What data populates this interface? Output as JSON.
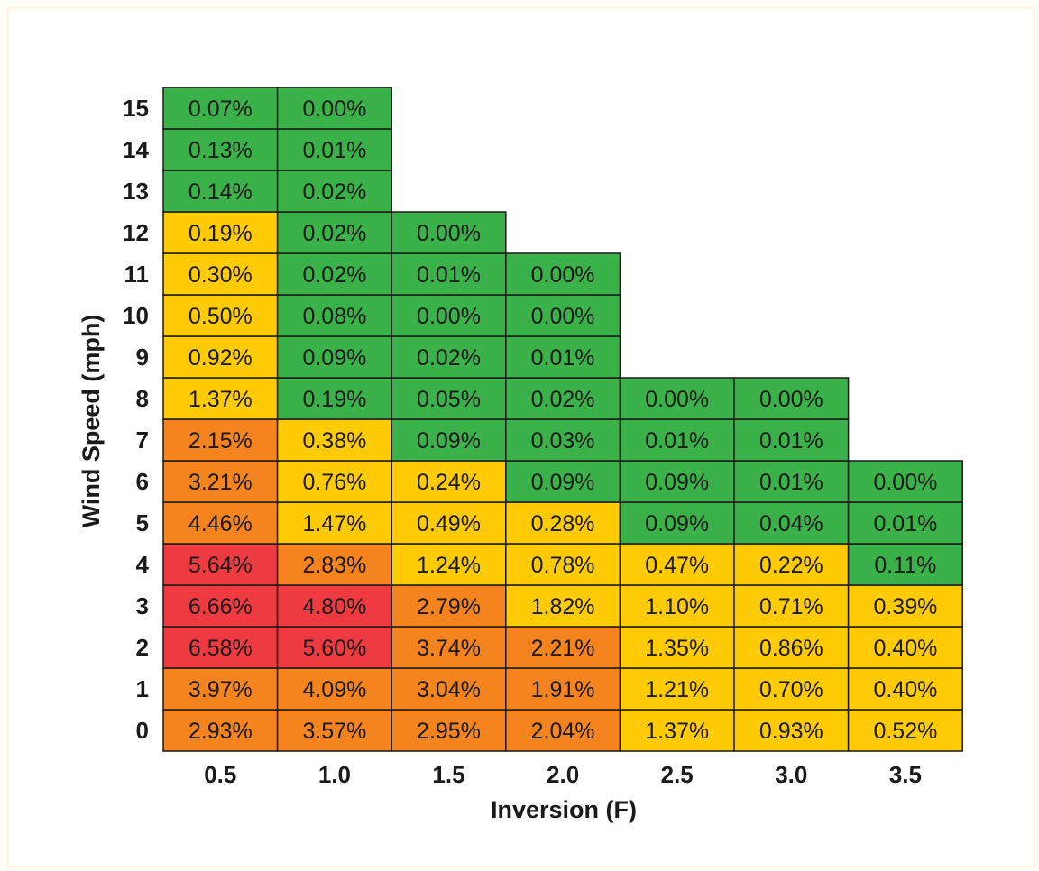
{
  "chart_data": {
    "type": "heatmap",
    "xlabel": "Inversion (F)",
    "ylabel": "Wind Speed (mph)",
    "x_categories": [
      "0.5",
      "1.0",
      "1.5",
      "2.0",
      "2.5",
      "3.0",
      "3.5"
    ],
    "y_categories": [
      "0",
      "1",
      "2",
      "3",
      "4",
      "5",
      "6",
      "7",
      "8",
      "9",
      "10",
      "11",
      "12",
      "13",
      "14",
      "15"
    ],
    "colors": {
      "green": "#3bb14a",
      "yellow": "#ffcb05",
      "orange": "#f5841f",
      "red": "#ef3a42",
      "border": "#1a1a1a"
    },
    "columns": [
      {
        "x": "0.5",
        "cells": [
          {
            "y": "0",
            "label": "2.93%",
            "color": "orange"
          },
          {
            "y": "1",
            "label": "3.97%",
            "color": "orange"
          },
          {
            "y": "2",
            "label": "6.58%",
            "color": "red"
          },
          {
            "y": "3",
            "label": "6.66%",
            "color": "red"
          },
          {
            "y": "4",
            "label": "5.64%",
            "color": "red"
          },
          {
            "y": "5",
            "label": "4.46%",
            "color": "orange"
          },
          {
            "y": "6",
            "label": "3.21%",
            "color": "orange"
          },
          {
            "y": "7",
            "label": "2.15%",
            "color": "orange"
          },
          {
            "y": "8",
            "label": "1.37%",
            "color": "yellow"
          },
          {
            "y": "9",
            "label": "0.92%",
            "color": "yellow"
          },
          {
            "y": "10",
            "label": "0.50%",
            "color": "yellow"
          },
          {
            "y": "11",
            "label": "0.30%",
            "color": "yellow"
          },
          {
            "y": "12",
            "label": "0.19%",
            "color": "yellow"
          },
          {
            "y": "13",
            "label": "0.14%",
            "color": "green"
          },
          {
            "y": "14",
            "label": "0.13%",
            "color": "green"
          },
          {
            "y": "15",
            "label": "0.07%",
            "color": "green"
          }
        ]
      },
      {
        "x": "1.0",
        "cells": [
          {
            "y": "0",
            "label": "3.57%",
            "color": "orange"
          },
          {
            "y": "1",
            "label": "4.09%",
            "color": "orange"
          },
          {
            "y": "2",
            "label": "5.60%",
            "color": "red"
          },
          {
            "y": "3",
            "label": "4.80%",
            "color": "red"
          },
          {
            "y": "4",
            "label": "2.83%",
            "color": "orange"
          },
          {
            "y": "5",
            "label": "1.47%",
            "color": "yellow"
          },
          {
            "y": "6",
            "label": "0.76%",
            "color": "yellow"
          },
          {
            "y": "7",
            "label": "0.38%",
            "color": "yellow"
          },
          {
            "y": "8",
            "label": "0.19%",
            "color": "green"
          },
          {
            "y": "9",
            "label": "0.09%",
            "color": "green"
          },
          {
            "y": "10",
            "label": "0.08%",
            "color": "green"
          },
          {
            "y": "11",
            "label": "0.02%",
            "color": "green"
          },
          {
            "y": "12",
            "label": "0.02%",
            "color": "green"
          },
          {
            "y": "13",
            "label": "0.02%",
            "color": "green"
          },
          {
            "y": "14",
            "label": "0.01%",
            "color": "green"
          },
          {
            "y": "15",
            "label": "0.00%",
            "color": "green"
          }
        ]
      },
      {
        "x": "1.5",
        "cells": [
          {
            "y": "0",
            "label": "2.95%",
            "color": "orange"
          },
          {
            "y": "1",
            "label": "3.04%",
            "color": "orange"
          },
          {
            "y": "2",
            "label": "3.74%",
            "color": "orange"
          },
          {
            "y": "3",
            "label": "2.79%",
            "color": "orange"
          },
          {
            "y": "4",
            "label": "1.24%",
            "color": "yellow"
          },
          {
            "y": "5",
            "label": "0.49%",
            "color": "yellow"
          },
          {
            "y": "6",
            "label": "0.24%",
            "color": "yellow"
          },
          {
            "y": "7",
            "label": "0.09%",
            "color": "green"
          },
          {
            "y": "8",
            "label": "0.05%",
            "color": "green"
          },
          {
            "y": "9",
            "label": "0.02%",
            "color": "green"
          },
          {
            "y": "10",
            "label": "0.00%",
            "color": "green"
          },
          {
            "y": "11",
            "label": "0.01%",
            "color": "green"
          },
          {
            "y": "12",
            "label": "0.00%",
            "color": "green"
          }
        ]
      },
      {
        "x": "2.0",
        "cells": [
          {
            "y": "0",
            "label": "2.04%",
            "color": "orange"
          },
          {
            "y": "1",
            "label": "1.91%",
            "color": "orange"
          },
          {
            "y": "2",
            "label": "2.21%",
            "color": "orange"
          },
          {
            "y": "3",
            "label": "1.82%",
            "color": "yellow"
          },
          {
            "y": "4",
            "label": "0.78%",
            "color": "yellow"
          },
          {
            "y": "5",
            "label": "0.28%",
            "color": "yellow"
          },
          {
            "y": "6",
            "label": "0.09%",
            "color": "green"
          },
          {
            "y": "7",
            "label": "0.03%",
            "color": "green"
          },
          {
            "y": "8",
            "label": "0.02%",
            "color": "green"
          },
          {
            "y": "9",
            "label": "0.01%",
            "color": "green"
          },
          {
            "y": "10",
            "label": "0.00%",
            "color": "green"
          },
          {
            "y": "11",
            "label": "0.00%",
            "color": "green"
          }
        ]
      },
      {
        "x": "2.5",
        "cells": [
          {
            "y": "0",
            "label": "1.37%",
            "color": "yellow"
          },
          {
            "y": "1",
            "label": "1.21%",
            "color": "yellow"
          },
          {
            "y": "2",
            "label": "1.35%",
            "color": "yellow"
          },
          {
            "y": "3",
            "label": "1.10%",
            "color": "yellow"
          },
          {
            "y": "4",
            "label": "0.47%",
            "color": "yellow"
          },
          {
            "y": "5",
            "label": "0.09%",
            "color": "green"
          },
          {
            "y": "6",
            "label": "0.09%",
            "color": "green"
          },
          {
            "y": "7",
            "label": "0.01%",
            "color": "green"
          },
          {
            "y": "8",
            "label": "0.00%",
            "color": "green"
          }
        ]
      },
      {
        "x": "3.0",
        "cells": [
          {
            "y": "0",
            "label": "0.93%",
            "color": "yellow"
          },
          {
            "y": "1",
            "label": "0.70%",
            "color": "yellow"
          },
          {
            "y": "2",
            "label": "0.86%",
            "color": "yellow"
          },
          {
            "y": "3",
            "label": "0.71%",
            "color": "yellow"
          },
          {
            "y": "4",
            "label": "0.22%",
            "color": "yellow"
          },
          {
            "y": "5",
            "label": "0.04%",
            "color": "green"
          },
          {
            "y": "6",
            "label": "0.01%",
            "color": "green"
          },
          {
            "y": "7",
            "label": "0.01%",
            "color": "green"
          },
          {
            "y": "8",
            "label": "0.00%",
            "color": "green"
          }
        ]
      },
      {
        "x": "3.5",
        "cells": [
          {
            "y": "0",
            "label": "0.52%",
            "color": "yellow"
          },
          {
            "y": "1",
            "label": "0.40%",
            "color": "yellow"
          },
          {
            "y": "2",
            "label": "0.40%",
            "color": "yellow"
          },
          {
            "y": "3",
            "label": "0.39%",
            "color": "yellow"
          },
          {
            "y": "4",
            "label": "0.11%",
            "color": "green"
          },
          {
            "y": "5",
            "label": "0.01%",
            "color": "green"
          },
          {
            "y": "6",
            "label": "0.00%",
            "color": "green"
          }
        ]
      }
    ]
  }
}
